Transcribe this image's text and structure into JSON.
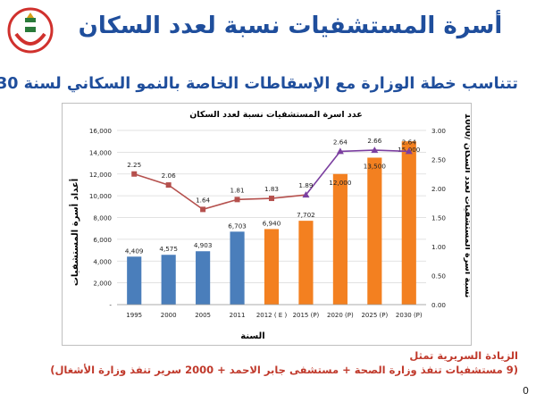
{
  "slide": {
    "title": "أسرة المستشفيات نسبة لعدد السكان",
    "subtitle": "تتناسب خطة الوزارة مع الإسقاطات الخاصة بالنمو السكاني لسنة 2030",
    "note_line1": "الزيادة السريرية تمثل",
    "note_line2": "(9 مستشفيات تنفذ وزارة الصحة + مستشفى جابر الاحمد + 2000 سرير تنفذ وزارة الأشغال)",
    "page_number": "0"
  },
  "colors": {
    "title_blue": "#1f4e9c",
    "bar_blue": "#4a7ebb",
    "bar_orange": "#f38020",
    "line_red": "#b5504d",
    "line_purple": "#7b3fa0",
    "note_red": "#c0392b",
    "logo_red": "#d0312d"
  },
  "logo": {
    "icon": "ministry-emblem-icon"
  },
  "chart_data": {
    "type": "bar",
    "title": "عدد اسرة المستشفيات نسبة لعدد السكان",
    "xlabel": "السنة",
    "ylabel": "أعداد أسرة المستشفيات",
    "y2label": "نسبة أسرة المستشفيات لعدد السكان /1000",
    "categories": [
      "1995",
      "2000",
      "2005",
      "2011",
      "2012 ( E )",
      "2015 (P)",
      "2020 (P)",
      "2025 (P)",
      "2030 (P)"
    ],
    "series": [
      {
        "axis": "left",
        "kind": "bar",
        "values": [
          4409,
          4575,
          4903,
          6703,
          6940,
          7702,
          12000,
          13500,
          15000
        ],
        "labels": [
          "4,409",
          "4,575",
          "4,903",
          "6,703",
          "6,940",
          "7,702",
          "12,000",
          "13,500",
          "15,000"
        ],
        "colors": [
          "#4a7ebb",
          "#4a7ebb",
          "#4a7ebb",
          "#4a7ebb",
          "#f38020",
          "#f38020",
          "#f38020",
          "#f38020",
          "#f38020"
        ]
      },
      {
        "axis": "right",
        "kind": "line",
        "values": [
          2.25,
          2.06,
          1.64,
          1.81,
          1.83,
          1.89,
          2.64,
          2.66,
          2.64
        ],
        "labels": [
          "2.25",
          "2.06",
          "1.64",
          "1.81",
          "1.83",
          "1.89",
          "2.64",
          "2.66",
          "2.64"
        ]
      }
    ],
    "ylim": [
      0,
      16000
    ],
    "y_ticks": [
      "-",
      "2,000",
      "4,000",
      "6,000",
      "8,000",
      "10,000",
      "12,000",
      "14,000",
      "16,000"
    ],
    "y2lim": [
      0,
      3
    ],
    "y2_ticks": [
      "0.00",
      "0.50",
      "1.00",
      "1.50",
      "2.00",
      "2.50",
      "3.00"
    ],
    "grid": true
  }
}
